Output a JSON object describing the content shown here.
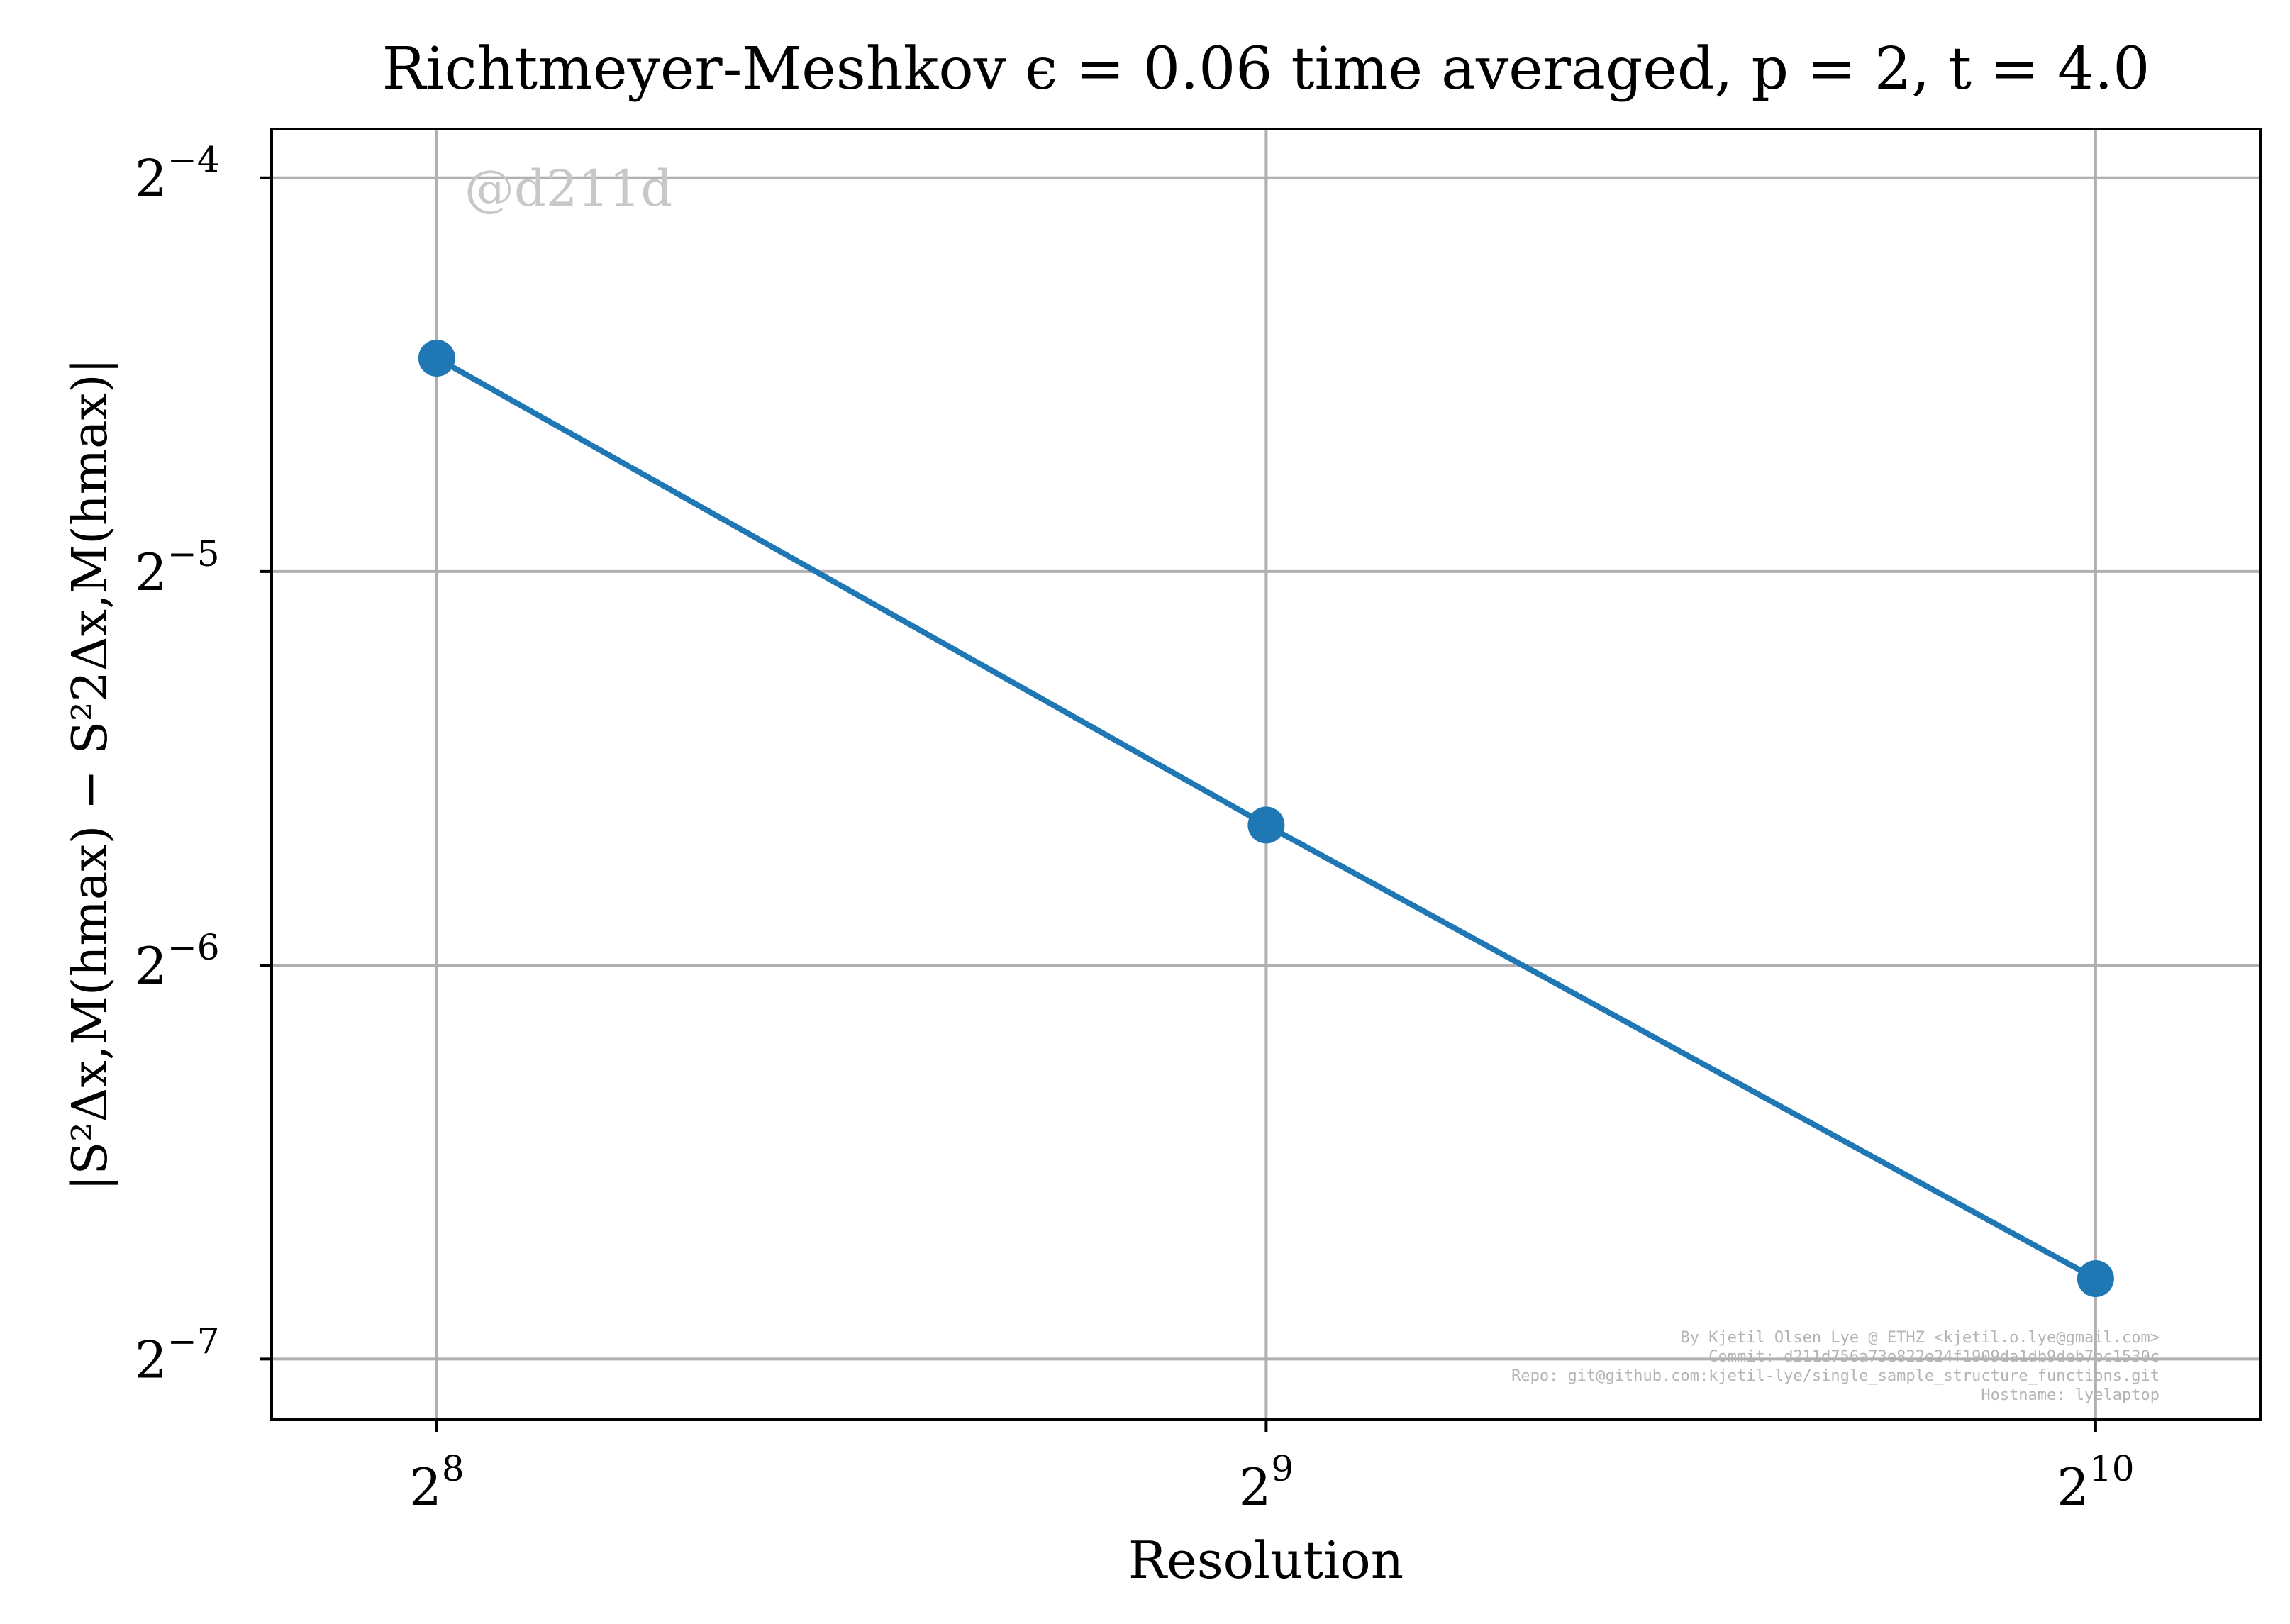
{
  "chart_data": {
    "type": "line",
    "title": "Richtmeyer-Meshkov ϵ = 0.06 time averaged, p = 2, t = 4.0",
    "xlabel": "Resolution",
    "ylabel": "|S²Δx,M(hmax) − S²2Δx,M(hmax)|",
    "xscale": "log2",
    "yscale": "log2",
    "x_ticks": [
      {
        "base": "2",
        "exp": "8"
      },
      {
        "base": "2",
        "exp": "9"
      },
      {
        "base": "2",
        "exp": "10"
      }
    ],
    "y_ticks": [
      {
        "base": "2",
        "exp": "−4"
      },
      {
        "base": "2",
        "exp": "−5"
      },
      {
        "base": "2",
        "exp": "−6"
      },
      {
        "base": "2",
        "exp": "−7"
      }
    ],
    "x_tick_values": [
      256,
      512,
      1024
    ],
    "y_tick_values": [
      0.0625,
      0.03125,
      0.015625,
      0.0078125
    ],
    "xlim": [
      223,
      1175
    ],
    "ylim": [
      0.00702,
      0.0681
    ],
    "grid": true,
    "series": [
      {
        "color": "#1f77b4",
        "marker": "circle",
        "x": [
          256,
          512,
          1024
        ],
        "y": [
          0.0455,
          0.02,
          0.009
        ]
      }
    ],
    "watermark": "@d211d",
    "credits": [
      "By Kjetil Olsen Lye @ ETHZ <kjetil.o.lye@gmail.com>",
      "Commit: d211d756a73e822e24f1909da1db9deb7bc1530c",
      "Repo: git@github.com:kjetil-lye/single_sample_structure_functions.git",
      "Hostname: lyelaptop"
    ]
  }
}
